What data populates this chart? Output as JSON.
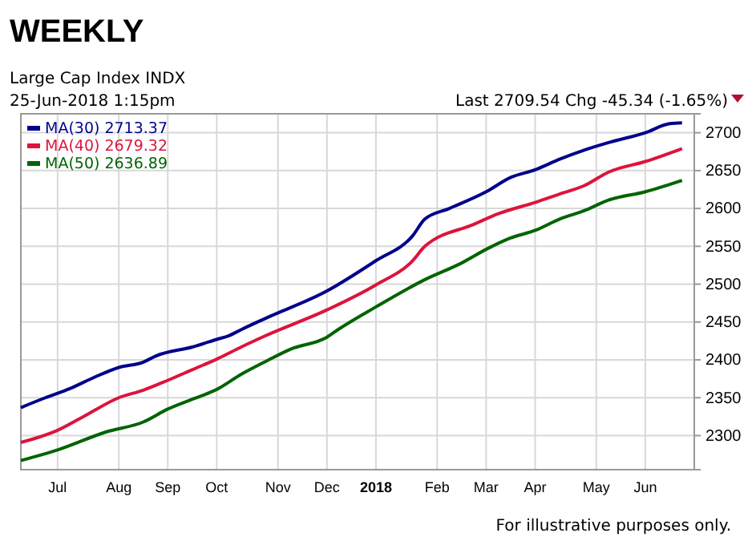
{
  "chart_data": {
    "type": "line",
    "title": "WEEKLY",
    "subtitle": "Large Cap Index INDX",
    "annotations": [
      "25-Jun-2018 1:15pm",
      "Last 2709.54 Chg -45.34 (-1.65%)",
      "For illustrative purposes only."
    ],
    "xlim": [
      "2017-06-12",
      "2018-07-02"
    ],
    "xticks": [
      {
        "value": "2017-07-03",
        "label": "Jul"
      },
      {
        "value": "2017-08-07",
        "label": "Aug"
      },
      {
        "value": "2017-09-04",
        "label": "Sep"
      },
      {
        "value": "2017-10-02",
        "label": "Oct"
      },
      {
        "value": "2017-11-06",
        "label": "Nov"
      },
      {
        "value": "2017-12-04",
        "label": "Dec"
      },
      {
        "value": "2018-01-01",
        "label": "2018"
      },
      {
        "value": "2018-02-05",
        "label": "Feb"
      },
      {
        "value": "2018-03-05",
        "label": "Mar"
      },
      {
        "value": "2018-04-02",
        "label": "Apr"
      },
      {
        "value": "2018-05-07",
        "label": "May"
      },
      {
        "value": "2018-06-04",
        "label": "Jun"
      }
    ],
    "ylim": [
      2255,
      2725
    ],
    "yticks": [
      2300,
      2350,
      2400,
      2450,
      2500,
      2550,
      2600,
      2650,
      2700
    ],
    "grid": true,
    "legend": "top left",
    "series": [
      {
        "name": "MA(30) 2713.37",
        "color": "#00008b",
        "x": [
          "2017-06-12",
          "2017-06-26",
          "2017-07-10",
          "2017-07-24",
          "2017-08-07",
          "2017-08-21",
          "2017-08-28",
          "2017-09-18",
          "2017-10-02",
          "2017-10-09",
          "2017-10-16",
          "2017-10-30",
          "2017-12-04",
          "2018-01-01",
          "2018-01-22",
          "2018-01-29",
          "2018-02-12",
          "2018-03-05",
          "2018-03-19",
          "2018-04-02",
          "2018-04-16",
          "2018-04-30",
          "2018-05-14",
          "2018-06-04",
          "2018-06-18",
          "2018-06-25"
        ],
        "values": [
          2337,
          2350,
          2362,
          2377,
          2390,
          2397,
          2405,
          2417,
          2427,
          2432,
          2440,
          2455,
          2491,
          2531,
          2564,
          2586,
          2600,
          2622,
          2641,
          2651,
          2665,
          2677,
          2687,
          2700,
          2712,
          2713
        ]
      },
      {
        "name": "MA(40) 2679.32",
        "color": "#dc143c",
        "x": [
          "2017-06-12",
          "2017-07-03",
          "2017-07-17",
          "2017-08-07",
          "2017-08-21",
          "2017-09-04",
          "2017-09-18",
          "2017-10-02",
          "2017-10-16",
          "2017-10-30",
          "2017-12-04",
          "2018-01-01",
          "2018-01-22",
          "2018-01-29",
          "2018-02-26",
          "2018-03-12",
          "2018-04-02",
          "2018-04-16",
          "2018-04-30",
          "2018-05-14",
          "2018-06-04",
          "2018-06-25"
        ],
        "values": [
          2291,
          2307,
          2324,
          2350,
          2360,
          2373,
          2387,
          2401,
          2417,
          2432,
          2466,
          2499,
          2531,
          2550,
          2579,
          2593,
          2608,
          2619,
          2630,
          2648,
          2662,
          2679
        ]
      },
      {
        "name": "MA(50) 2636.89",
        "color": "#006400",
        "x": [
          "2017-06-12",
          "2017-07-03",
          "2017-07-31",
          "2017-08-21",
          "2017-09-04",
          "2017-09-18",
          "2017-10-02",
          "2017-10-16",
          "2017-10-30",
          "2017-11-13",
          "2017-12-04",
          "2017-12-11",
          "2018-01-01",
          "2018-01-29",
          "2018-02-19",
          "2018-03-05",
          "2018-03-19",
          "2018-04-02",
          "2018-04-16",
          "2018-04-30",
          "2018-05-14",
          "2018-06-04",
          "2018-06-25"
        ],
        "values": [
          2267,
          2281,
          2305,
          2318,
          2335,
          2348,
          2361,
          2381,
          2398,
          2414,
          2430,
          2441,
          2470,
          2506,
          2528,
          2546,
          2561,
          2571,
          2586,
          2597,
          2611,
          2622,
          2637
        ]
      }
    ]
  }
}
